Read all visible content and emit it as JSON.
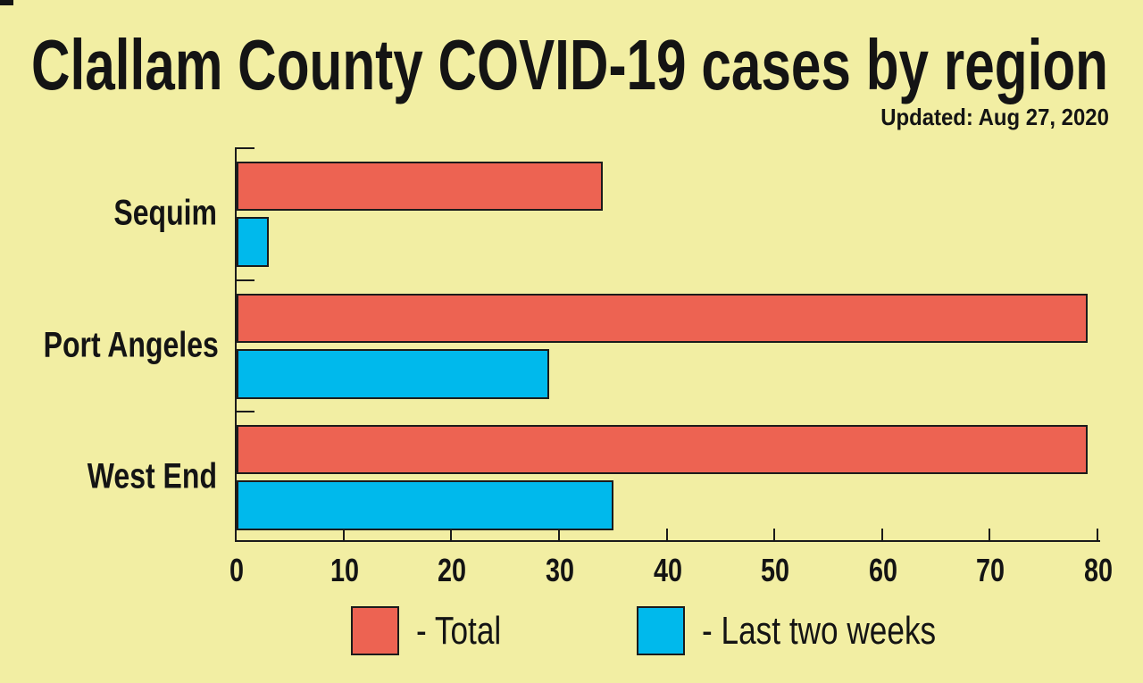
{
  "chart_data": {
    "type": "bar",
    "orientation": "horizontal",
    "title": "Clallam County COVID-19 cases by region",
    "updated": "Updated: Aug 27, 2020",
    "categories": [
      "Sequim",
      "Port Angeles",
      "West End"
    ],
    "series": [
      {
        "name": "Total",
        "color": "#ED6352",
        "values": [
          34,
          79,
          79
        ]
      },
      {
        "name": "Last two weeks",
        "color": "#00B9EC",
        "values": [
          3,
          29,
          35
        ]
      }
    ],
    "xlim": [
      0,
      80
    ],
    "x_ticks": [
      0,
      10,
      20,
      30,
      40,
      50,
      60,
      70,
      80
    ],
    "xlabel": "",
    "ylabel": "",
    "grid": false,
    "legend_position": "bottom",
    "legend": [
      {
        "label": "- Total"
      },
      {
        "label": "- Last two weeks"
      }
    ],
    "colors": {
      "background": "#F2EEA3",
      "axis": "#1b1b1b",
      "text": "#141414"
    }
  }
}
